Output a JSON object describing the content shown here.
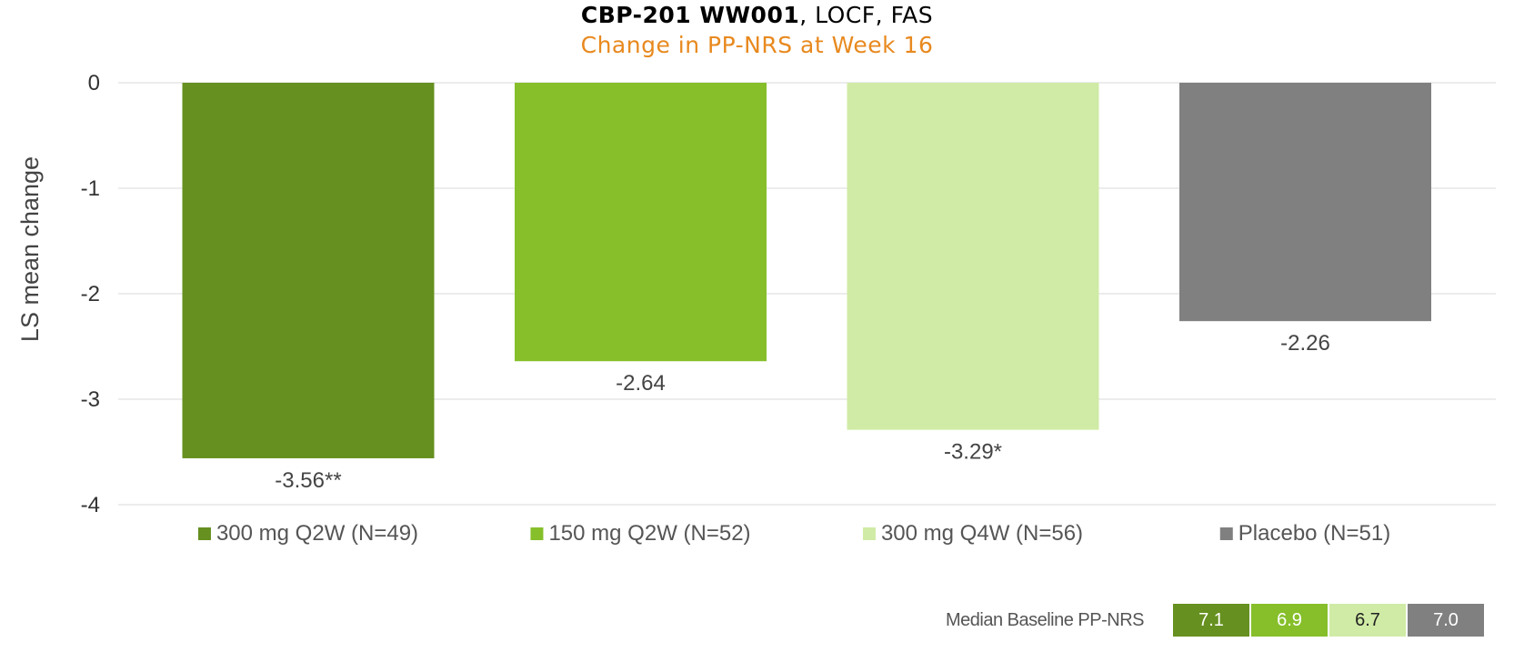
{
  "title": {
    "bold": "CBP-201 WW001",
    "rest": ", LOCF, FAS"
  },
  "subtitle": "Change in PP-NRS at Week 16",
  "chart_data": {
    "type": "bar",
    "title": "CBP-201 WW001, LOCF, FAS",
    "subtitle": "Change in PP-NRS at Week 16",
    "ylabel": "LS mean change",
    "xlabel": "",
    "ylim": [
      -4,
      0
    ],
    "yticks": [
      0,
      -1,
      -2,
      -3,
      -4
    ],
    "grid": true,
    "legend_position": "bottom",
    "categories": [
      "300 mg Q2W (N=49)",
      "150 mg Q2W (N=52)",
      "300 mg Q4W (N=56)",
      "Placebo (N=51)"
    ],
    "values": [
      -3.56,
      -2.64,
      -3.29,
      -2.26
    ],
    "data_labels": [
      "-3.56**",
      "-2.64",
      "-3.29*",
      "-2.26"
    ],
    "colors": [
      "#66901f",
      "#86bf2a",
      "#d0ebA5",
      "#808080"
    ]
  },
  "baseline": {
    "label": "Median Baseline PP-NRS",
    "values": [
      "7.1",
      "6.9",
      "6.7",
      "7.0"
    ],
    "colors": [
      "#66901f",
      "#86bf2a",
      "#d0eba5",
      "#808080"
    ],
    "text_colors": [
      "#ffffff",
      "#ffffff",
      "#222222",
      "#ffffff"
    ]
  }
}
